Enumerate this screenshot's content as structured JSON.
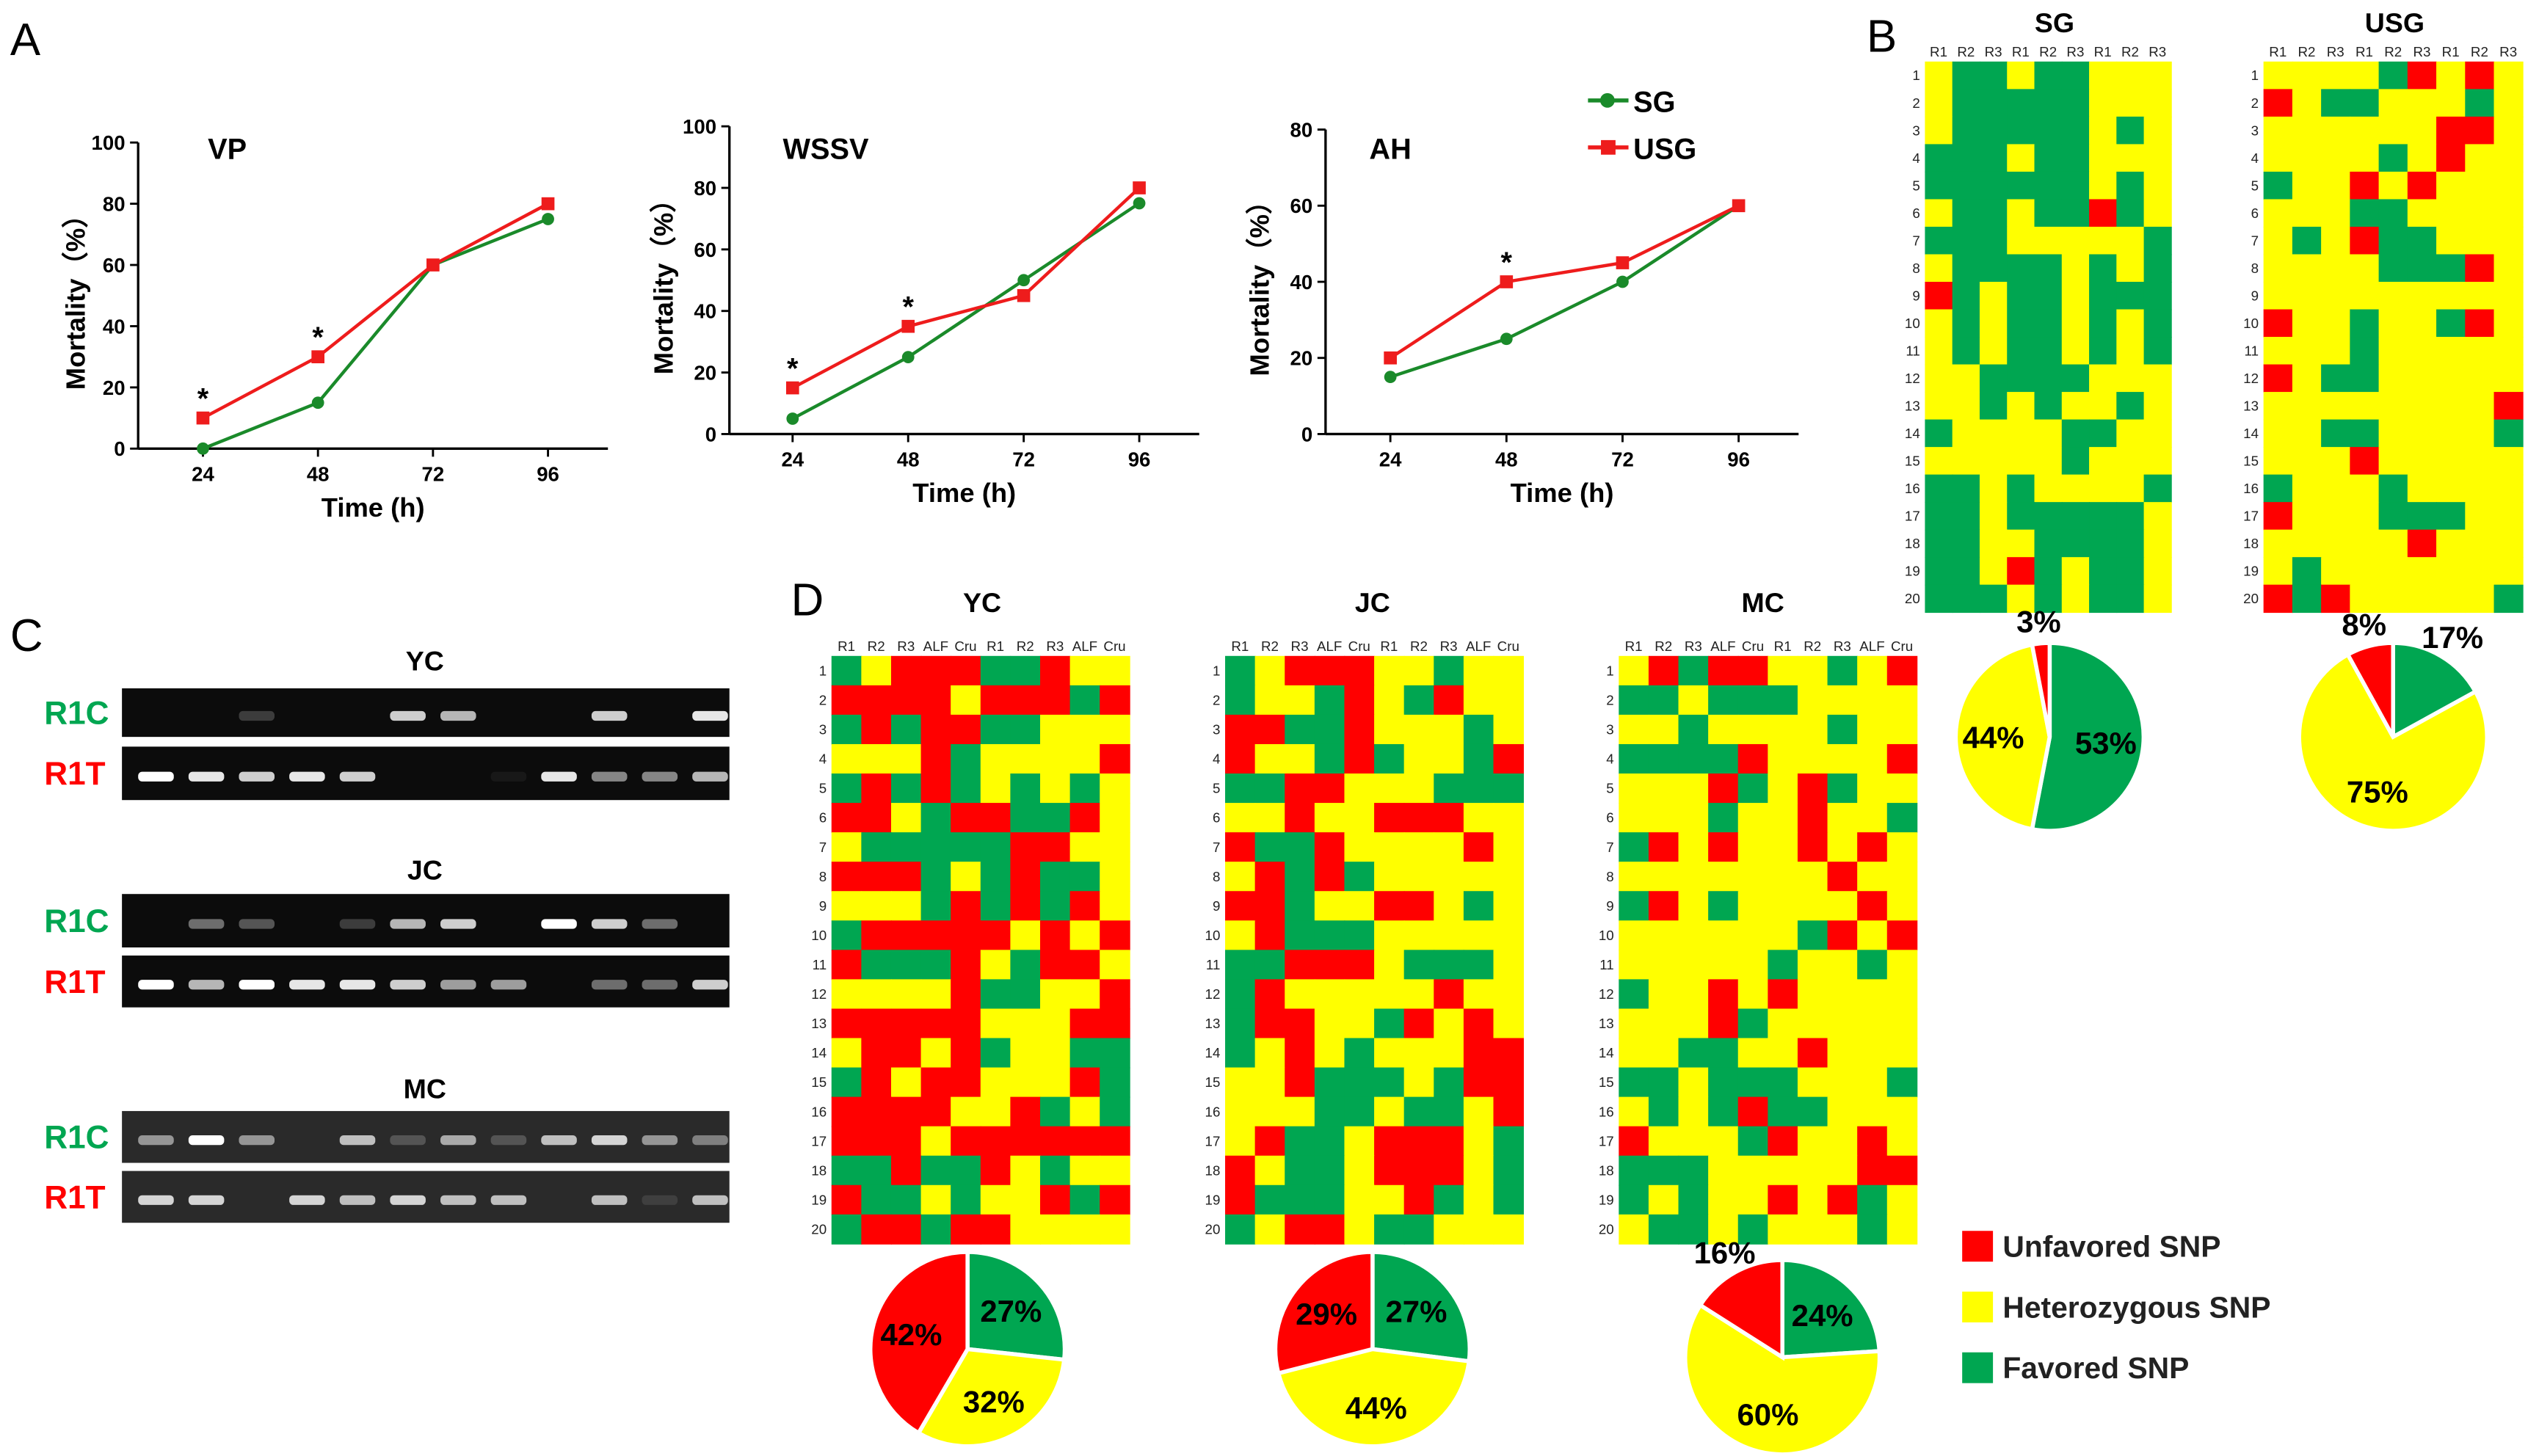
{
  "panel_labels": {
    "A": "A",
    "B": "B",
    "C": "C",
    "D": "D"
  },
  "colors": {
    "SG": "#1a8a2a",
    "USG": "#ee1c1c",
    "unfavored": "#ff0000",
    "heterozygous": "#ffff00",
    "favored": "#00a651",
    "r1c": "#00a651",
    "r1t": "#ff0000"
  },
  "legend_lines": [
    {
      "label": "SG",
      "color": "#1a8a2a",
      "marker": "circle"
    },
    {
      "label": "USG",
      "color": "#ee1c1c",
      "marker": "square"
    }
  ],
  "legend_snp": [
    {
      "label": "Unfavored SNP",
      "color": "#ff0000"
    },
    {
      "label": "Heterozygous SNP",
      "color": "#ffff00"
    },
    {
      "label": "Favored SNP",
      "color": "#00a651"
    }
  ],
  "chart_data": [
    {
      "type": "line",
      "title": "VP",
      "xlabel": "Time (h)",
      "ylabel": "Mortality（%）",
      "x": [
        24,
        48,
        72,
        96
      ],
      "ylim": [
        0,
        100
      ],
      "yticks": [
        0,
        20,
        40,
        60,
        80,
        100
      ],
      "series": [
        {
          "name": "SG",
          "values": [
            0,
            15,
            60,
            75
          ]
        },
        {
          "name": "USG",
          "values": [
            10,
            30,
            60,
            80
          ]
        }
      ],
      "significant": [
        24,
        48
      ],
      "star": "*"
    },
    {
      "type": "line",
      "title": "WSSV",
      "xlabel": "Time (h)",
      "ylabel": "Mortality（%）",
      "x": [
        24,
        48,
        72,
        96
      ],
      "ylim": [
        0,
        100
      ],
      "yticks": [
        0,
        20,
        40,
        60,
        80,
        100
      ],
      "series": [
        {
          "name": "SG",
          "values": [
            5,
            25,
            50,
            75
          ]
        },
        {
          "name": "USG",
          "values": [
            15,
            35,
            45,
            80
          ]
        }
      ],
      "significant": [
        24,
        48
      ],
      "star": "*"
    },
    {
      "type": "line",
      "title": "AH",
      "xlabel": "Time (h)",
      "ylabel": "Mortality（%）",
      "x": [
        24,
        48,
        72,
        96
      ],
      "ylim": [
        0,
        80
      ],
      "yticks": [
        0,
        20,
        40,
        60,
        80
      ],
      "series": [
        {
          "name": "SG",
          "values": [
            15,
            25,
            40,
            60
          ]
        },
        {
          "name": "USG",
          "values": [
            20,
            40,
            45,
            60
          ]
        }
      ],
      "significant": [
        48
      ],
      "star": "*"
    },
    {
      "type": "heatmap",
      "title": "SG",
      "legend_key": {
        "R": "Unfavored SNP",
        "Y": "Heterozygous SNP",
        "G": "Favored SNP"
      },
      "columns": [
        "R1",
        "R2",
        "R3",
        "R1",
        "R2",
        "R3",
        "R1",
        "R2",
        "R3"
      ],
      "rows": [
        "1",
        "2",
        "3",
        "4",
        "5",
        "6",
        "7",
        "8",
        "9",
        "10",
        "11",
        "12",
        "13",
        "14",
        "15",
        "16",
        "17",
        "18",
        "19",
        "20"
      ],
      "values": [
        "YGGYGGYYY",
        "YGGGGGYYY",
        "YGGGGGYGY",
        "GGGYGGYYY",
        "GGGGGGYGY",
        "YGGYGGRGY",
        "GGGYYYYYG",
        "YGGGGYGYG",
        "RGYGGYGGG",
        "YGYGGYGYG",
        "YGYGGYGYG",
        "YYGGGGYYY",
        "YYGYGYYGY",
        "GYYYYGGYY",
        "YYYYYGYYY",
        "GGYGYYYYG",
        "GGYGGGGGY",
        "GGYYGGGGY",
        "GGYRGYGGY",
        "GGGYGYGGY"
      ]
    },
    {
      "type": "heatmap",
      "title": "USG",
      "columns": [
        "R1",
        "R2",
        "R3",
        "R1",
        "R2",
        "R3",
        "R1",
        "R2",
        "R3"
      ],
      "rows": [
        "1",
        "2",
        "3",
        "4",
        "5",
        "6",
        "7",
        "8",
        "9",
        "10",
        "11",
        "12",
        "13",
        "14",
        "15",
        "16",
        "17",
        "18",
        "19",
        "20"
      ],
      "values": [
        "YYYYGRYRY",
        "RYGGYYYGY",
        "YYYYYYRRY",
        "YYYYGYRYY",
        "GYYRYRYYY",
        "YYYGGYYYY",
        "YGYRGGYYY",
        "YYYYGGGRY",
        "YYYYYYYYY",
        "RYYGYYGRY",
        "YYYGYYYYY",
        "RYGGYYYYY",
        "YYYYYYYYR",
        "YYGGYYYYG",
        "YYYRYYYYY",
        "GYYYGYYYY",
        "RYYYGGGYY",
        "YYYYYRYYY",
        "YGYYYYYYY",
        "RGRYYYYYG"
      ]
    },
    {
      "type": "heatmap",
      "title": "YC",
      "columns": [
        "R1",
        "R2",
        "R3",
        "ALF",
        "Cru",
        "R1",
        "R2",
        "R3",
        "ALF",
        "Cru"
      ],
      "rows": [
        "1",
        "2",
        "3",
        "4",
        "5",
        "6",
        "7",
        "8",
        "9",
        "10",
        "11",
        "12",
        "13",
        "14",
        "15",
        "16",
        "17",
        "18",
        "19",
        "20"
      ],
      "values": [
        "GYRRRGGRYY",
        "RRRRYRRRGR",
        "GRGRRGGYYY",
        "YYYRGYYYYR",
        "GRGRGYGYGY",
        "RRYGRRGGRY",
        "YGGGGGRRYY",
        "RRRGYGRGGY",
        "YYYGRGRGRY",
        "GRRRRRYRYR",
        "RGGGRYGRRY",
        "YYYYRGGYYR",
        "RRRRRYYYRR",
        "YRRYRGYYGG",
        "GRYRRYYYRG",
        "RRRRYYRGYG",
        "RRRYRRRRRR",
        "GGRGGRYGYY",
        "RGGYGYYRGR",
        "GRRGRRYYYY"
      ]
    },
    {
      "type": "heatmap",
      "title": "JC",
      "columns": [
        "R1",
        "R2",
        "R3",
        "ALF",
        "Cru",
        "R1",
        "R2",
        "R3",
        "ALF",
        "Cru"
      ],
      "rows": [
        "1",
        "2",
        "3",
        "4",
        "5",
        "6",
        "7",
        "8",
        "9",
        "10",
        "11",
        "12",
        "13",
        "14",
        "15",
        "16",
        "17",
        "18",
        "19",
        "20"
      ],
      "values": [
        "GYRRRYYGYY",
        "GYYGRYGRYY",
        "RRGGRYYYGY",
        "RYYGRGYYGR",
        "GGRRYYYGGG",
        "YYRYYRRRYY",
        "RGGRYYYYRY",
        "YRGRGYYYYY",
        "RRGYYRRYGY",
        "YRGGGYYYYY",
        "GGRRRYGGGY",
        "GRYYYYYRYY",
        "GRRYYGRYRY",
        "GYRYGYYYRR",
        "YYRGGGYGRR",
        "YYYGGYGGYR",
        "YRGGYRRRYG",
        "RYGGYRRRYG",
        "RGGGYYRGYG",
        "GYRRYGGYYY"
      ]
    },
    {
      "type": "heatmap",
      "title": "MC",
      "columns": [
        "R1",
        "R2",
        "R3",
        "ALF",
        "Cru",
        "R1",
        "R2",
        "R3",
        "ALF",
        "Cru"
      ],
      "rows": [
        "1",
        "2",
        "3",
        "4",
        "5",
        "6",
        "7",
        "8",
        "9",
        "10",
        "11",
        "12",
        "13",
        "14",
        "15",
        "16",
        "17",
        "18",
        "19",
        "20"
      ],
      "values": [
        "YRGRRYYGYR",
        "GGYGGGYYYY",
        "YYGYYYYGYY",
        "GGGGRYYYYR",
        "YYYRGYRGYY",
        "YYYGYYRYYG",
        "GRYRYYRYRY",
        "YYYYYYYRYY",
        "GRYGYYYYRY",
        "YYYYYYGRYR",
        "YYYYYGYYGY",
        "GYYRYRYYYY",
        "YYYRGYYYYY",
        "YYGGYYRYYY",
        "GGYGGGYYYG",
        "YGYGRGGYYY",
        "RYYYGRYYRY",
        "GGGYYYYYRR",
        "GYGYYRYRGY",
        "YGGYGYYYGY"
      ]
    },
    {
      "type": "pie",
      "group": "SG",
      "slices": [
        {
          "name": "Favored SNP",
          "value": 53,
          "label": "53%"
        },
        {
          "name": "Heterozygous SNP",
          "value": 44,
          "label": "44%"
        },
        {
          "name": "Unfavored SNP",
          "value": 3,
          "label": "3%"
        }
      ]
    },
    {
      "type": "pie",
      "group": "USG",
      "slices": [
        {
          "name": "Favored SNP",
          "value": 17,
          "label": "17%"
        },
        {
          "name": "Heterozygous SNP",
          "value": 75,
          "label": "75%"
        },
        {
          "name": "Unfavored SNP",
          "value": 8,
          "label": "8%"
        }
      ]
    },
    {
      "type": "pie",
      "group": "YC",
      "slices": [
        {
          "name": "Favored SNP",
          "value": 27,
          "label": "27%"
        },
        {
          "name": "Heterozygous SNP",
          "value": 32,
          "label": "32%"
        },
        {
          "name": "Unfavored SNP",
          "value": 42,
          "label": "42%"
        }
      ]
    },
    {
      "type": "pie",
      "group": "JC",
      "slices": [
        {
          "name": "Favored SNP",
          "value": 27,
          "label": "27%"
        },
        {
          "name": "Heterozygous SNP",
          "value": 44,
          "label": "44%"
        },
        {
          "name": "Unfavored SNP",
          "value": 29,
          "label": "29%"
        }
      ]
    },
    {
      "type": "pie",
      "group": "MC",
      "slices": [
        {
          "name": "Favored SNP",
          "value": 24,
          "label": "24%"
        },
        {
          "name": "Heterozygous SNP",
          "value": 60,
          "label": "60%"
        },
        {
          "name": "Unfavored SNP",
          "value": 16,
          "label": "16%"
        }
      ]
    }
  ],
  "gels": [
    {
      "title": "YC",
      "rows": [
        {
          "label": "R1C",
          "bands": [
            0,
            0,
            0.2,
            0,
            0,
            0.8,
            0.7,
            0,
            0,
            0.8,
            0,
            0.9
          ]
        },
        {
          "label": "R1T",
          "bands": [
            1,
            0.9,
            0.8,
            0.9,
            0.8,
            0,
            0,
            0.05,
            0.9,
            0.5,
            0.5,
            0.7
          ]
        }
      ]
    },
    {
      "title": "JC",
      "rows": [
        {
          "label": "R1C",
          "bands": [
            0,
            0.4,
            0.3,
            0,
            0.2,
            0.7,
            0.8,
            0,
            1,
            0.8,
            0.4,
            0
          ]
        },
        {
          "label": "R1T",
          "bands": [
            1,
            0.7,
            1,
            0.9,
            0.9,
            0.8,
            0.6,
            0.6,
            0,
            0.4,
            0.4,
            0.8
          ]
        }
      ]
    },
    {
      "title": "MC",
      "rows": [
        {
          "label": "R1C",
          "bands": [
            0.5,
            1,
            0.5,
            0,
            0.7,
            0.2,
            0.6,
            0.2,
            0.7,
            0.8,
            0.5,
            0.4
          ]
        },
        {
          "label": "R1T",
          "bands": [
            0.8,
            0.8,
            0,
            0.8,
            0.7,
            0.8,
            0.7,
            0.7,
            0,
            0.7,
            0.1,
            0.7
          ]
        }
      ]
    }
  ]
}
